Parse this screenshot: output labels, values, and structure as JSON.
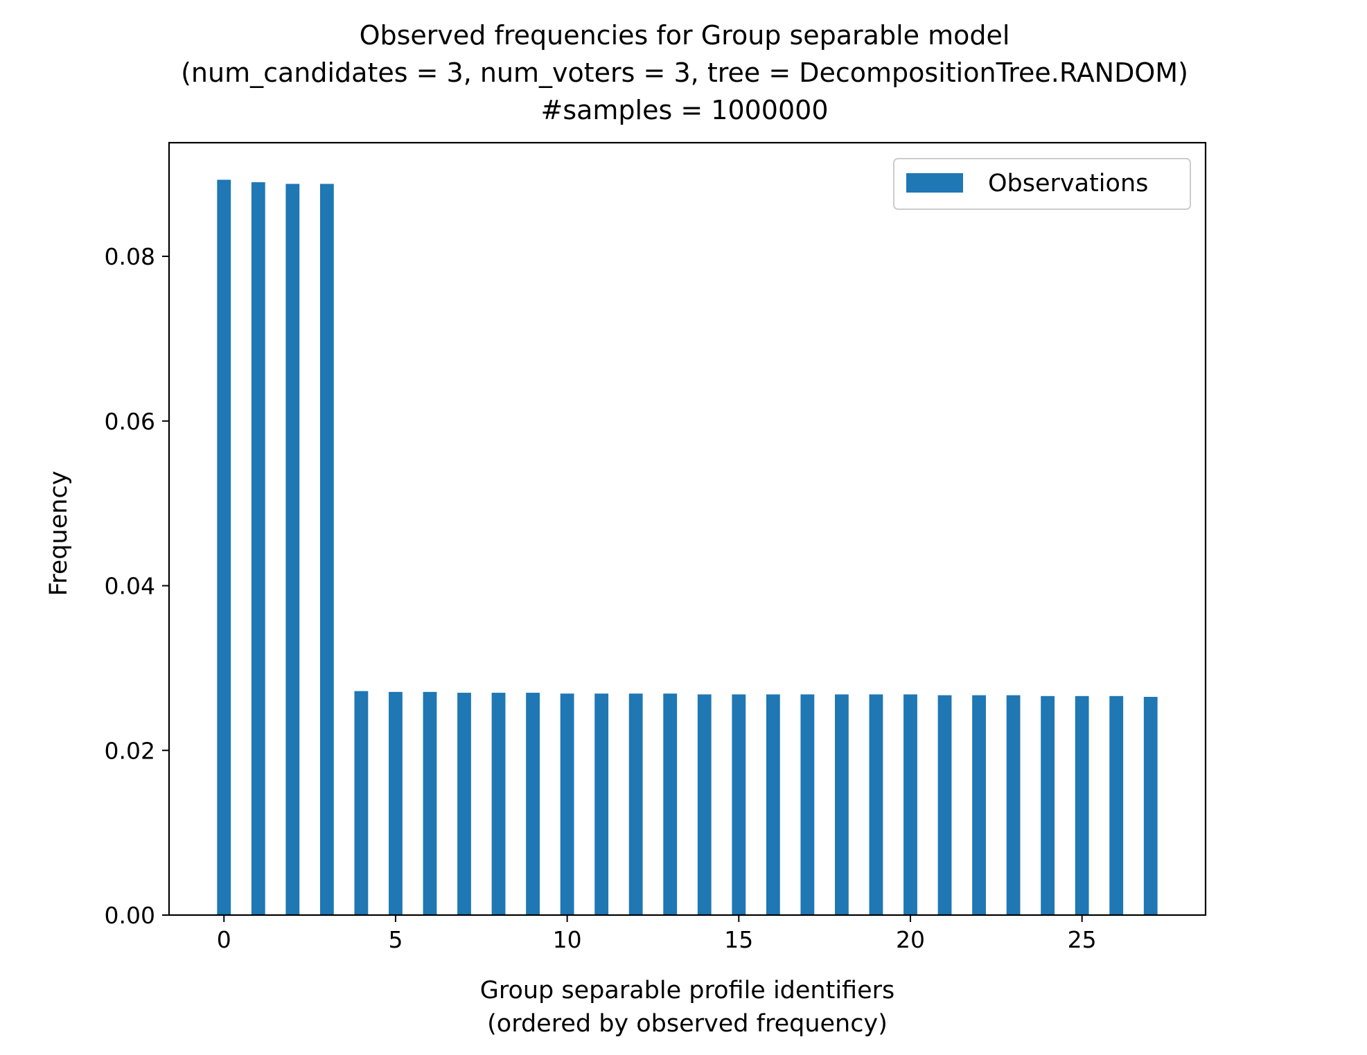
{
  "chart_data": {
    "type": "bar",
    "title_lines": [
      "Observed frequencies for Group separable model",
      "(num_candidates = 3, num_voters = 3, tree = DecompositionTree.RANDOM)",
      "#samples = 1000000"
    ],
    "xlabel_lines": [
      "Group separable profile identifiers",
      "(ordered by observed frequency)"
    ],
    "ylabel": "Frequency",
    "legend": {
      "label": "Observations",
      "placement": "top-right"
    },
    "series_color": "#1f77b4",
    "xlim": [
      -1.6,
      28.6
    ],
    "ylim": [
      0,
      0.0938
    ],
    "x_ticks": [
      0,
      5,
      10,
      15,
      20,
      25
    ],
    "x_tick_labels": [
      "0",
      "5",
      "10",
      "15",
      "20",
      "25"
    ],
    "y_ticks": [
      0,
      0.02,
      0.04,
      0.06,
      0.08
    ],
    "y_tick_labels": [
      "0.00",
      "0.02",
      "0.04",
      "0.06",
      "0.08"
    ],
    "grid": false,
    "x": [
      0,
      1,
      2,
      3,
      4,
      5,
      6,
      7,
      8,
      9,
      10,
      11,
      12,
      13,
      14,
      15,
      16,
      17,
      18,
      19,
      20,
      21,
      22,
      23,
      24,
      25,
      26,
      27
    ],
    "values": [
      0.0893,
      0.089,
      0.0888,
      0.0888,
      0.0272,
      0.0271,
      0.0271,
      0.027,
      0.027,
      0.027,
      0.0269,
      0.0269,
      0.0269,
      0.0269,
      0.0268,
      0.0268,
      0.0268,
      0.0268,
      0.0268,
      0.0268,
      0.0268,
      0.0267,
      0.0267,
      0.0267,
      0.0266,
      0.0266,
      0.0266,
      0.0265
    ]
  }
}
